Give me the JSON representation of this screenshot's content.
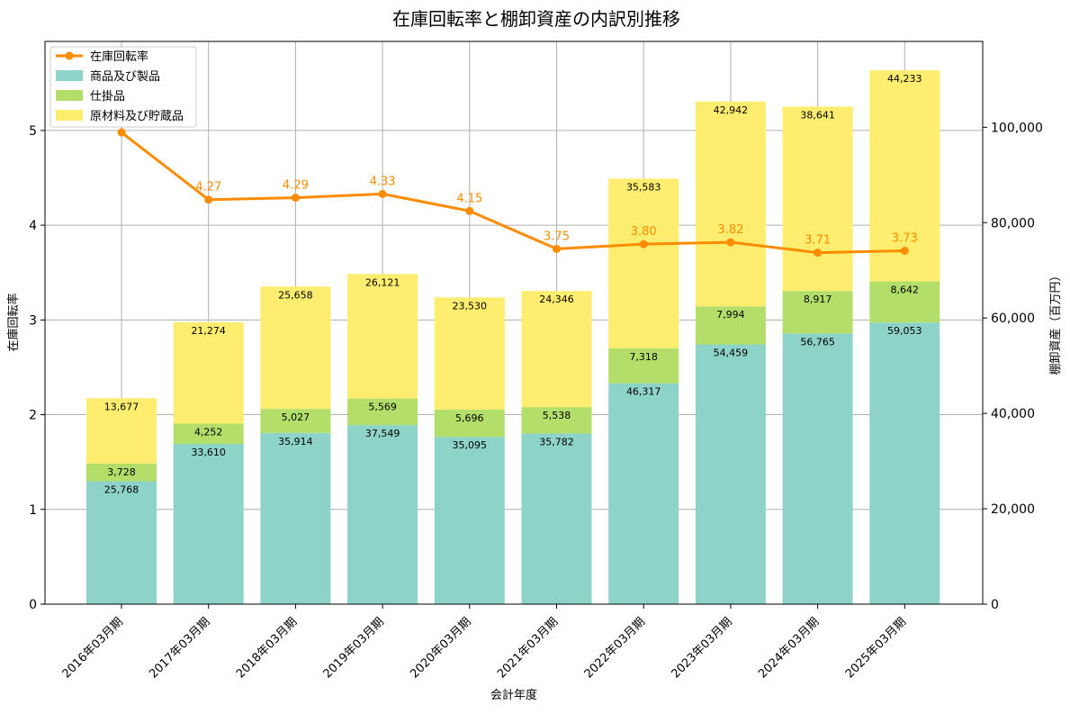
{
  "chart_data": {
    "type": "bar",
    "title": "在庫回転率と棚卸資産の内訳別推移",
    "xlabel": "会計年度",
    "ylabel_left": "在庫回転率",
    "ylabel_right": "棚卸資産（百万円）",
    "categories": [
      "2016年03月期",
      "2017年03月期",
      "2018年03月期",
      "2019年03月期",
      "2020年03月期",
      "2021年03月期",
      "2022年03月期",
      "2023年03月期",
      "2024年03月期",
      "2025年03月期"
    ],
    "stacked_series": [
      {
        "name": "商品及び製品",
        "color": "#8dd3c7",
        "values": [
          25768,
          33610,
          35914,
          37549,
          35095,
          35782,
          46317,
          54459,
          56765,
          59053
        ],
        "labels": [
          "25,768",
          "33,610",
          "35,914",
          "37,549",
          "35,095",
          "35,782",
          "46,317",
          "54,459",
          "56,765",
          "59,053"
        ]
      },
      {
        "name": "仕掛品",
        "color": "#b3de69",
        "values": [
          3728,
          4252,
          5027,
          5569,
          5696,
          5538,
          7318,
          7994,
          8917,
          8642
        ],
        "labels": [
          "3,728",
          "4,252",
          "5,027",
          "5,569",
          "5,696",
          "5,538",
          "7,318",
          "7,994",
          "8,917",
          "8,642"
        ]
      },
      {
        "name": "原材料及び貯蔵品",
        "color": "#ffed6f",
        "values": [
          13677,
          21274,
          25658,
          26121,
          23530,
          24346,
          35583,
          42942,
          38641,
          44233
        ],
        "labels": [
          "13,677",
          "21,274",
          "25,658",
          "26,121",
          "23,530",
          "24,346",
          "35,583",
          "42,942",
          "38,641",
          "44,233"
        ]
      }
    ],
    "line_series": {
      "name": "在庫回転率",
      "color": "#ff8c00",
      "values": [
        4.98,
        4.27,
        4.29,
        4.33,
        4.15,
        3.75,
        3.8,
        3.82,
        3.71,
        3.73
      ],
      "labels": [
        "",
        "4.27",
        "4.29",
        "4.33",
        "4.15",
        "3.75",
        "3.80",
        "3.82",
        "3.71",
        "3.73"
      ]
    },
    "ylim_left": [
      0,
      5.94
    ],
    "ylim_right": [
      0,
      118000
    ],
    "yticks_left": [
      "0",
      "1",
      "2",
      "3",
      "4",
      "5"
    ],
    "yticks_left_values": [
      0,
      1,
      2,
      3,
      4,
      5
    ],
    "yticks_right": [
      "0",
      "20,000",
      "40,000",
      "60,000",
      "80,000",
      "100,000"
    ],
    "yticks_right_values": [
      0,
      20000,
      40000,
      60000,
      80000,
      100000
    ],
    "grid": true,
    "legend_position": "top-left"
  }
}
